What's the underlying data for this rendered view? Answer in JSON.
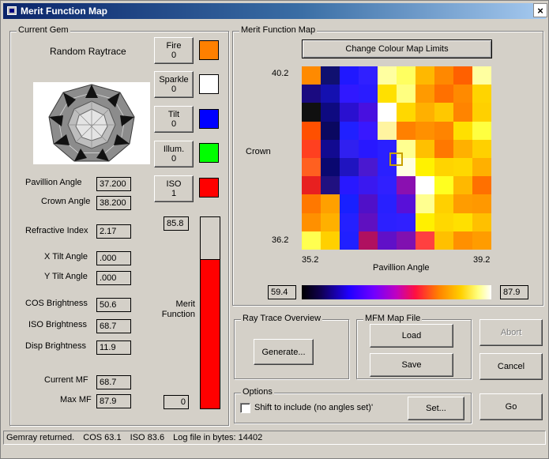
{
  "window": {
    "title": "Merit Function Map",
    "close_glyph": "×"
  },
  "current_gem": {
    "group_title": "Current Gem",
    "raytrace_title": "Random Raytrace",
    "fields": {
      "pavillion_angle": {
        "label": "Pavillion Angle",
        "value": "37.200"
      },
      "crown_angle": {
        "label": "Crown Angle",
        "value": "38.200"
      },
      "refractive_index": {
        "label": "Refractive Index",
        "value": "2.17"
      },
      "x_tilt_angle": {
        "label": "X Tilt Angle",
        "value": ".000"
      },
      "y_tilt_angle": {
        "label": "Y Tilt Angle",
        "value": ".000"
      },
      "cos_brightness": {
        "label": "COS Brightness",
        "value": "50.6"
      },
      "iso_brightness": {
        "label": "ISO Brightness",
        "value": "68.7"
      },
      "disp_brightness": {
        "label": "Disp Brightness",
        "value": "11.9"
      },
      "current_mf": {
        "label": "Current MF",
        "value": "68.7"
      },
      "max_mf": {
        "label": "Max MF",
        "value": "87.9"
      }
    },
    "weights": [
      {
        "name": "Fire",
        "value": "0",
        "color": "#ff8000"
      },
      {
        "name": "Sparkle",
        "value": "0",
        "color": "#ffffff"
      },
      {
        "name": "Tilt",
        "value": "0",
        "color": "#0000ff"
      },
      {
        "name": "Illum.",
        "value": "0",
        "color": "#00ff00"
      },
      {
        "name": "ISO",
        "value": "1",
        "color": "#ff0000"
      }
    ],
    "merit": {
      "label_line1": "Merit",
      "label_line2": "Function",
      "top_value": "85.8",
      "bottom_value": "0",
      "fill_fraction": 0.78,
      "fill_color": "#ff0000"
    }
  },
  "merit_map": {
    "group_title": "Merit Function Map",
    "change_limits_label": "Change Colour Map Limits",
    "y_axis_label": "Crown",
    "x_axis_label": "Pavillion Angle",
    "y_top_tick": "40.2",
    "y_bottom_tick": "36.2",
    "x_left_tick": "35.2",
    "x_right_tick": "39.2",
    "color_min": "59.4",
    "color_max": "87.9",
    "grid_colors": [
      [
        "#ff8a00",
        "#101070",
        "#2018ff",
        "#3020ff",
        "#ffffa0",
        "#ffff60",
        "#ffb800",
        "#ff8800",
        "#ff6000",
        "#ffffa0"
      ],
      [
        "#1a0a80",
        "#1410b0",
        "#3018ff",
        "#2a1cff",
        "#ffe000",
        "#ffff80",
        "#ff9a00",
        "#ff7000",
        "#ff8a00",
        "#ffd400"
      ],
      [
        "#101010",
        "#0e0a80",
        "#2a10d0",
        "#4810e0",
        "#ffffff",
        "#ffd800",
        "#ffb000",
        "#ffc800",
        "#ff8400",
        "#ffd000"
      ],
      [
        "#ff5000",
        "#0a0860",
        "#2020ff",
        "#3818ff",
        "#fff4a0",
        "#ff8000",
        "#ff9000",
        "#ff8400",
        "#ffe000",
        "#ffff40"
      ],
      [
        "#ff4020",
        "#120a90",
        "#3020f0",
        "#2818ff",
        "#2a20ff",
        "#ffff90",
        "#ffc000",
        "#ff7800",
        "#ffb000",
        "#ffd000"
      ],
      [
        "#ff6020",
        "#0a0870",
        "#2014c0",
        "#4a18d0",
        "#2a20ff",
        "#ffffe0",
        "#fff200",
        "#ffd400",
        "#ffd800",
        "#ffb000"
      ],
      [
        "#e82020",
        "#201080",
        "#2818ff",
        "#3a18f0",
        "#3020ff",
        "#8a10b0",
        "#ffffff",
        "#ffff20",
        "#ffb800",
        "#ff7000"
      ],
      [
        "#ff7800",
        "#ffa000",
        "#1820ff",
        "#5010c8",
        "#2820ff",
        "#5810d8",
        "#ffff90",
        "#ffd000",
        "#ff9c00",
        "#ff9800"
      ],
      [
        "#ff9000",
        "#ffb000",
        "#2420ff",
        "#6010c0",
        "#2c20ff",
        "#3020ff",
        "#fff000",
        "#ffd800",
        "#ffe000",
        "#ffc000"
      ],
      [
        "#ffff50",
        "#ffd000",
        "#2020ff",
        "#b01060",
        "#6010c8",
        "#8010b0",
        "#ff4040",
        "#ffc000",
        "#ff9000",
        "#ff9c00"
      ]
    ]
  },
  "ray_trace_overview": {
    "group_title": "Ray Trace Overview",
    "generate_label": "Generate..."
  },
  "mfm_map_file": {
    "group_title": "MFM Map File",
    "load_label": "Load",
    "save_label": "Save"
  },
  "actions": {
    "abort_label": "Abort",
    "cancel_label": "Cancel",
    "go_label": "Go"
  },
  "options": {
    "group_title": "Options",
    "shift_checkbox_label": "Shift to include (no angles set)'",
    "shift_checked": false,
    "set_label": "Set..."
  },
  "status": {
    "message": "Gemray returned.",
    "cos": "COS  63.1",
    "iso": "ISO  83.6",
    "log": "Log file in bytes:  14402"
  }
}
